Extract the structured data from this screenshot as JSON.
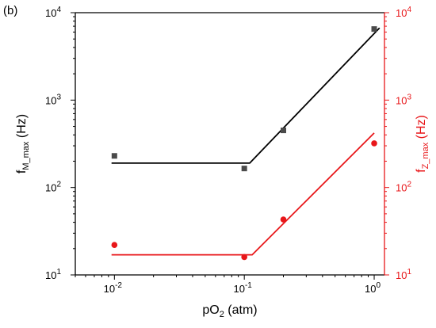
{
  "panel_label": "(b)",
  "colors": {
    "left": "#000000",
    "right": "#e8171a",
    "marker_left": "#4a4a4a"
  },
  "chart_data": {
    "type": "scatter",
    "xscale": "log",
    "xlim": [
      0.005,
      1.2
    ],
    "xticks": [
      {
        "value": 0.01,
        "label": "10",
        "exp": "-2"
      },
      {
        "value": 0.1,
        "label": "10",
        "exp": "-1"
      },
      {
        "value": 1,
        "label": "10",
        "exp": "0"
      }
    ],
    "xlabel": {
      "main": "pO",
      "sub": "2",
      "rest": " (atm)"
    },
    "left_axis": {
      "scale": "log",
      "ylim": [
        10,
        10000
      ],
      "yticks": [
        {
          "value": 10,
          "label": "10",
          "exp": "1"
        },
        {
          "value": 100,
          "label": "10",
          "exp": "2"
        },
        {
          "value": 1000,
          "label": "10",
          "exp": "3"
        },
        {
          "value": 10000,
          "label": "10",
          "exp": "4"
        }
      ],
      "ylabel": {
        "main": "f",
        "sub": "M_max",
        "rest": " (Hz)"
      }
    },
    "right_axis": {
      "scale": "log",
      "ylim": [
        10,
        10000
      ],
      "yticks": [
        {
          "value": 10,
          "label": "10",
          "exp": "1"
        },
        {
          "value": 100,
          "label": "10",
          "exp": "2"
        },
        {
          "value": 1000,
          "label": "10",
          "exp": "3"
        },
        {
          "value": 10000,
          "label": "10",
          "exp": "4"
        }
      ],
      "ylabel": {
        "main": "f",
        "sub": "Z_max",
        "rest": " (Hz)"
      }
    },
    "series": [
      {
        "axis": "left",
        "marker": "square",
        "x": [
          0.01,
          0.1,
          0.2,
          1.0
        ],
        "y": [
          230,
          165,
          450,
          6500
        ],
        "fit": {
          "x": [
            0.0095,
            0.11,
            1.1
          ],
          "y": [
            190,
            190,
            6700
          ]
        }
      },
      {
        "axis": "right",
        "marker": "circle",
        "x": [
          0.01,
          0.1,
          0.2,
          1.0
        ],
        "y": [
          22,
          16,
          43,
          320
        ],
        "fit": {
          "x": [
            0.0095,
            0.115,
            1.0
          ],
          "y": [
            17,
            17,
            420
          ]
        }
      }
    ]
  }
}
